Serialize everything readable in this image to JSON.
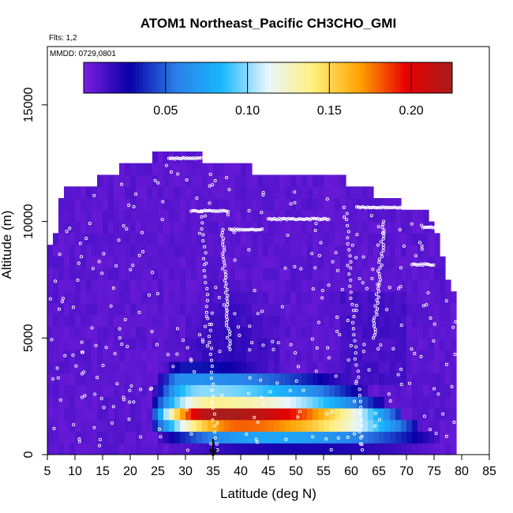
{
  "chart_data": {
    "type": "heatmap",
    "title": "ATOM1 Northeast_Pacific CH3CHO_GMI",
    "subtitle_flights": "Flts: 1,2",
    "subtitle_dates": "MMDD: 0729,0801",
    "xlabel": "Latitude (deg N)",
    "ylabel": "Altitude (m)",
    "xlim": [
      5,
      85
    ],
    "ylim": [
      0,
      17500
    ],
    "x_ticks": [
      "5",
      "10",
      "15",
      "20",
      "25",
      "30",
      "35",
      "40",
      "45",
      "50",
      "55",
      "60",
      "65",
      "70",
      "75",
      "80",
      "85"
    ],
    "y_ticks": [
      "0",
      "5000",
      "10000",
      "15000"
    ],
    "colorbar": {
      "range": [
        0,
        0.225
      ],
      "tick_labels": [
        "0.05",
        "0.10",
        "0.15",
        "0.20"
      ],
      "tick_values": [
        0.05,
        0.1,
        0.15,
        0.2
      ],
      "colors": [
        "#7b1fe0",
        "#0a00a8",
        "#2a7fe8",
        "#18b8ff",
        "#e8f6ff",
        "#fff07a",
        "#ffa200",
        "#e80000",
        "#a81c1c"
      ]
    },
    "background_value": 0.008,
    "ceiling_profile": {
      "lat": [
        5.5,
        6.5,
        8,
        13,
        15,
        17,
        21,
        26,
        29,
        33,
        34,
        38,
        42,
        49,
        53,
        58,
        61,
        64.5,
        67.5,
        69.5,
        74,
        76,
        77,
        78,
        79
      ],
      "alt": [
        8700,
        9500,
        11300,
        11300,
        11900,
        11900,
        12300,
        12700,
        12900,
        12700,
        12300,
        12300,
        12000,
        11800,
        11600,
        11600,
        11200,
        11000,
        10800,
        10500,
        10200,
        9000,
        7600,
        7200,
        6100
      ]
    },
    "plume": {
      "rows": [
        {
          "alt": 3750,
          "lat": [
            26,
            47
          ],
          "peak": 0.033,
          "center": 30
        },
        {
          "alt": 3250,
          "lat": [
            25,
            60
          ],
          "peak": 0.065,
          "center": 30
        },
        {
          "alt": 2750,
          "lat": [
            24.5,
            63
          ],
          "peak": 0.1,
          "center": 33
        },
        {
          "alt": 2250,
          "lat": [
            24,
            66
          ],
          "peak": 0.135,
          "center": 35
        },
        {
          "alt": 1750,
          "lat": [
            24,
            69
          ],
          "peak": 0.225,
          "center": 36
        },
        {
          "alt": 1250,
          "lat": [
            24,
            72
          ],
          "peak": 0.18,
          "center": 40
        },
        {
          "alt": 750,
          "lat": [
            25,
            76
          ],
          "peak": 0.075,
          "center": 45
        },
        {
          "alt": 250,
          "lat": [
            26,
            77
          ],
          "peak": 0.025,
          "center": 50
        }
      ]
    },
    "flight_track": {
      "level_segments": [
        {
          "lat": [
            27,
            33
          ],
          "alt": 12700
        },
        {
          "lat": [
            31,
            38
          ],
          "alt": 10450
        },
        {
          "lat": [
            38,
            44
          ],
          "alt": 9650
        },
        {
          "lat": [
            45,
            56
          ],
          "alt": 10100
        },
        {
          "lat": [
            61,
            70
          ],
          "alt": 10600
        },
        {
          "lat": [
            73,
            78
          ],
          "alt": 9750
        },
        {
          "lat": [
            71,
            75
          ],
          "alt": 8150
        }
      ],
      "descents": [
        {
          "lat": [
            33,
            35.5
          ],
          "alt": [
            10450,
            200
          ]
        },
        {
          "lat": [
            36.5,
            38
          ],
          "alt": [
            9650,
            4500
          ]
        },
        {
          "lat": [
            59,
            62
          ],
          "alt": [
            10600,
            200
          ]
        },
        {
          "lat": [
            66,
            64
          ],
          "alt": [
            10000,
            5000
          ]
        }
      ],
      "scatter_n": 300
    },
    "marker": {
      "lat": 35,
      "label": "arrow"
    }
  }
}
